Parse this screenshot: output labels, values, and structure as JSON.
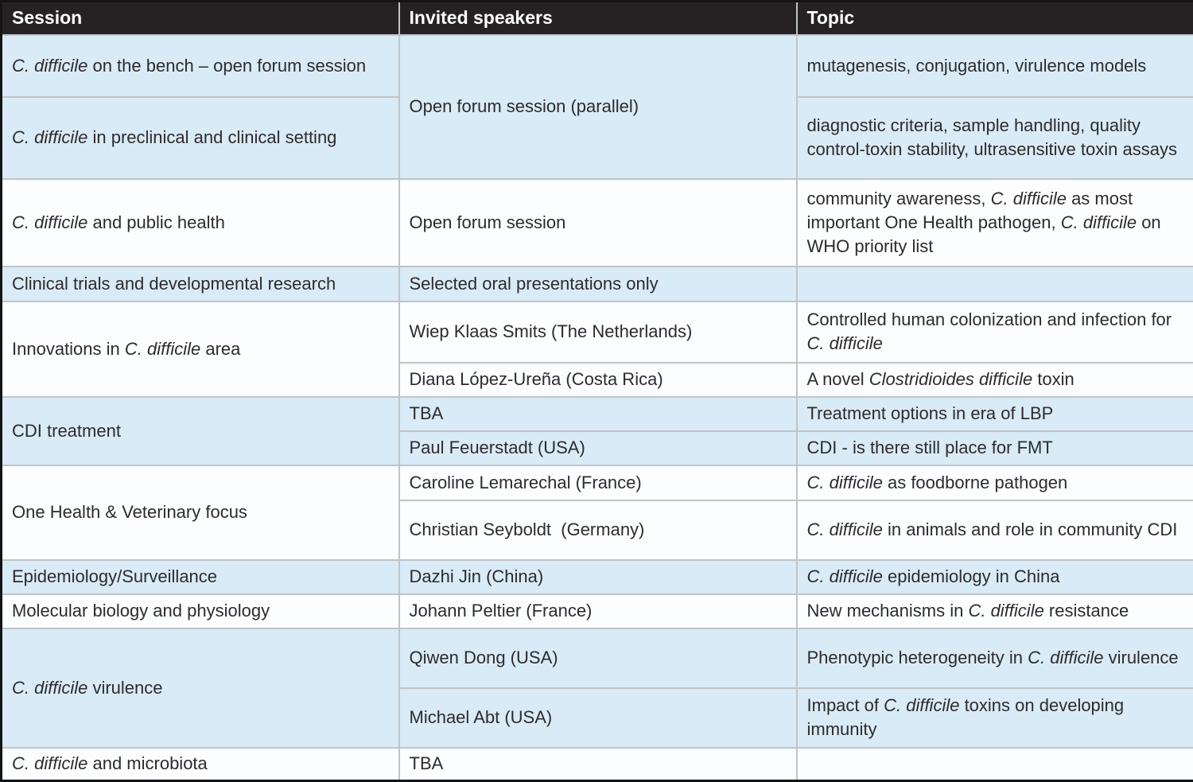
{
  "colors": {
    "header_bg": "#262224",
    "header_text": "#ffffff",
    "row_blue": "#d9ebf7",
    "row_white": "#fcfdfe",
    "grid_line": "#bfc4c7",
    "outer_border": "#141414",
    "body_text": "#2e2b2c"
  },
  "table": {
    "headers": {
      "session": "Session",
      "speakers": "Invited speakers",
      "topic": "Topic"
    },
    "rows": [
      {
        "session": [
          {
            "t": "C. difficile",
            "i": true
          },
          {
            "t": " on the bench – open forum session"
          }
        ],
        "speaker": [
          {
            "t": "Open forum session (parallel)"
          }
        ],
        "topic": [
          {
            "t": "mutagenesis, conjugation, virulence models"
          }
        ]
      },
      {
        "session": [
          {
            "t": "C. difficile",
            "i": true
          },
          {
            "t": " in preclinical and clinical setting"
          }
        ],
        "topic": [
          {
            "t": "diagnostic criteria, sample handling, quality control-toxin stability, ultrasensitive toxin assays"
          }
        ]
      },
      {
        "session": [
          {
            "t": "C. difficile",
            "i": true
          },
          {
            "t": " and public health"
          }
        ],
        "speaker": [
          {
            "t": "Open forum session"
          }
        ],
        "topic": [
          {
            "t": "community awareness, "
          },
          {
            "t": "C. difficile",
            "i": true
          },
          {
            "t": " as most important One Health pathogen, "
          },
          {
            "t": "C. difficile",
            "i": true
          },
          {
            "t": " on WHO priority list"
          }
        ]
      },
      {
        "session": [
          {
            "t": "Clinical trials and developmental research"
          }
        ],
        "speaker": [
          {
            "t": "Selected oral presentations only"
          }
        ],
        "topic": []
      },
      {
        "session": [
          {
            "t": "Innovations in "
          },
          {
            "t": "C. difficile",
            "i": true
          },
          {
            "t": " area"
          }
        ],
        "speaker": [
          {
            "t": "Wiep Klaas Smits (The Netherlands)"
          }
        ],
        "topic": [
          {
            "t": "Controlled human colonization and infection for "
          },
          {
            "t": "C. difficile",
            "i": true
          }
        ]
      },
      {
        "speaker": [
          {
            "t": "Diana López-Ureña (Costa Rica)"
          }
        ],
        "topic": [
          {
            "t": "A novel "
          },
          {
            "t": "Clostridioides difficile",
            "i": true
          },
          {
            "t": " toxin"
          }
        ]
      },
      {
        "session": [
          {
            "t": "CDI treatment"
          }
        ],
        "speaker": [
          {
            "t": "TBA"
          }
        ],
        "topic": [
          {
            "t": "Treatment options in era of LBP"
          }
        ]
      },
      {
        "speaker": [
          {
            "t": "Paul Feuerstadt (USA)"
          }
        ],
        "topic": [
          {
            "t": "CDI - is there still place for FMT"
          }
        ]
      },
      {
        "session": [
          {
            "t": "One Health & Veterinary focus"
          }
        ],
        "speaker": [
          {
            "t": "Caroline Lemarechal (France)"
          }
        ],
        "topic": [
          {
            "t": "C. difficile",
            "i": true
          },
          {
            "t": " as foodborne pathogen"
          }
        ]
      },
      {
        "speaker": [
          {
            "t": "Christian Seyboldt  (Germany)"
          }
        ],
        "topic": [
          {
            "t": "C. difficile",
            "i": true
          },
          {
            "t": " in animals and role in community CDI"
          }
        ]
      },
      {
        "session": [
          {
            "t": "Epidemiology/Surveillance"
          }
        ],
        "speaker": [
          {
            "t": "Dazhi Jin (China)"
          }
        ],
        "topic": [
          {
            "t": "C. difficile",
            "i": true
          },
          {
            "t": " epidemiology in China"
          }
        ]
      },
      {
        "session": [
          {
            "t": "Molecular biology and physiology"
          }
        ],
        "speaker": [
          {
            "t": "Johann Peltier (France)"
          }
        ],
        "topic": [
          {
            "t": "New mechanisms in "
          },
          {
            "t": "C. difficile",
            "i": true
          },
          {
            "t": " resistance"
          }
        ]
      },
      {
        "session": [
          {
            "t": "C. difficile",
            "i": true
          },
          {
            "t": " virulence"
          }
        ],
        "speaker": [
          {
            "t": "Qiwen Dong (USA)"
          }
        ],
        "topic": [
          {
            "t": "Phenotypic heterogeneity in "
          },
          {
            "t": "C. difficile",
            "i": true
          },
          {
            "t": " virulence"
          }
        ]
      },
      {
        "speaker": [
          {
            "t": "Michael Abt (USA)"
          }
        ],
        "topic": [
          {
            "t": "Impact of "
          },
          {
            "t": "C. difficile",
            "i": true
          },
          {
            "t": " toxins on developing immunity"
          }
        ]
      },
      {
        "session": [
          {
            "t": "C. difficile",
            "i": true
          },
          {
            "t": " and microbiota"
          }
        ],
        "speaker": [
          {
            "t": "TBA"
          }
        ],
        "topic": []
      }
    ]
  }
}
